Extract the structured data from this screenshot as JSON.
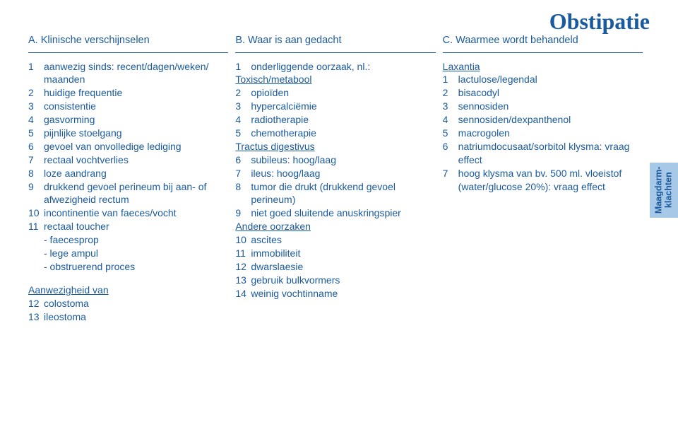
{
  "title": "Obstipatie",
  "sideTab": {
    "line1": "Maagdarm-",
    "line2": "klachten"
  },
  "columns": {
    "A": {
      "header": "A. Klinische verschijnselen",
      "items": [
        {
          "n": "1",
          "t": "aanwezig sinds: recent/dagen/weken/ maanden"
        },
        {
          "n": "2",
          "t": "huidige frequentie"
        },
        {
          "n": "3",
          "t": "consistentie"
        },
        {
          "n": "4",
          "t": "gasvorming"
        },
        {
          "n": "5",
          "t": "pijnlijke stoelgang"
        },
        {
          "n": "6",
          "t": "gevoel van onvolledige lediging"
        },
        {
          "n": "7",
          "t": "rectaal vochtverlies"
        },
        {
          "n": "8",
          "t": "loze aandrang"
        },
        {
          "n": "9",
          "t": "drukkend gevoel perineum bij aan- of afwezigheid rectum"
        },
        {
          "n": "10",
          "t": "incontinentie van faeces/vocht"
        },
        {
          "n": "11",
          "t": "rectaal toucher\n- faecesprop\n- lege ampul\n- obstruerend proces"
        }
      ],
      "subheading": "Aanwezigheid van",
      "subitems": [
        {
          "n": "12",
          "t": "colostoma"
        },
        {
          "n": "13",
          "t": "ileostoma"
        }
      ]
    },
    "B": {
      "header": "B. Waar is aan gedacht",
      "groups": [
        {
          "lead": {
            "n": "1",
            "t": "onderliggende oorzaak, nl.:"
          },
          "heading": "Toxisch/metabool",
          "items": [
            {
              "n": "2",
              "t": "opioïden"
            },
            {
              "n": "3",
              "t": "hypercalciëmie"
            },
            {
              "n": "4",
              "t": "radiotherapie"
            },
            {
              "n": "5",
              "t": "chemotherapie"
            }
          ]
        },
        {
          "heading": "Tractus digestivus",
          "items": [
            {
              "n": "6",
              "t": "subileus: hoog/laag"
            },
            {
              "n": "7",
              "t": "ileus: hoog/laag"
            },
            {
              "n": "8",
              "t": "tumor die drukt (drukkend gevoel perineum)"
            },
            {
              "n": "9",
              "t": "niet goed sluitende anuskringspier"
            }
          ]
        },
        {
          "heading": "Andere oorzaken",
          "items": [
            {
              "n": "10",
              "t": "ascites"
            },
            {
              "n": "11",
              "t": "immobiliteit"
            },
            {
              "n": "12",
              "t": "dwarslaesie"
            },
            {
              "n": "13",
              "t": "gebruik bulkvormers"
            },
            {
              "n": "14",
              "t": "weinig vochtinname"
            }
          ]
        }
      ]
    },
    "C": {
      "header": "C. Waarmee wordt behandeld",
      "heading": "Laxantia",
      "items": [
        {
          "n": "1",
          "t": "lactulose/legendal"
        },
        {
          "n": "2",
          "t": "bisacodyl"
        },
        {
          "n": "3",
          "t": "sennosiden"
        },
        {
          "n": "4",
          "t": "sennosiden/dexpanthenol"
        },
        {
          "n": "5",
          "t": "macrogolen"
        },
        {
          "n": "6",
          "t": "natriumdocusaat/sorbitol klysma: vraag effect"
        },
        {
          "n": "7",
          "t": "hoog klysma van bv. 500 ml. vloeistof (water/glucose 20%): vraag effect"
        }
      ]
    }
  }
}
